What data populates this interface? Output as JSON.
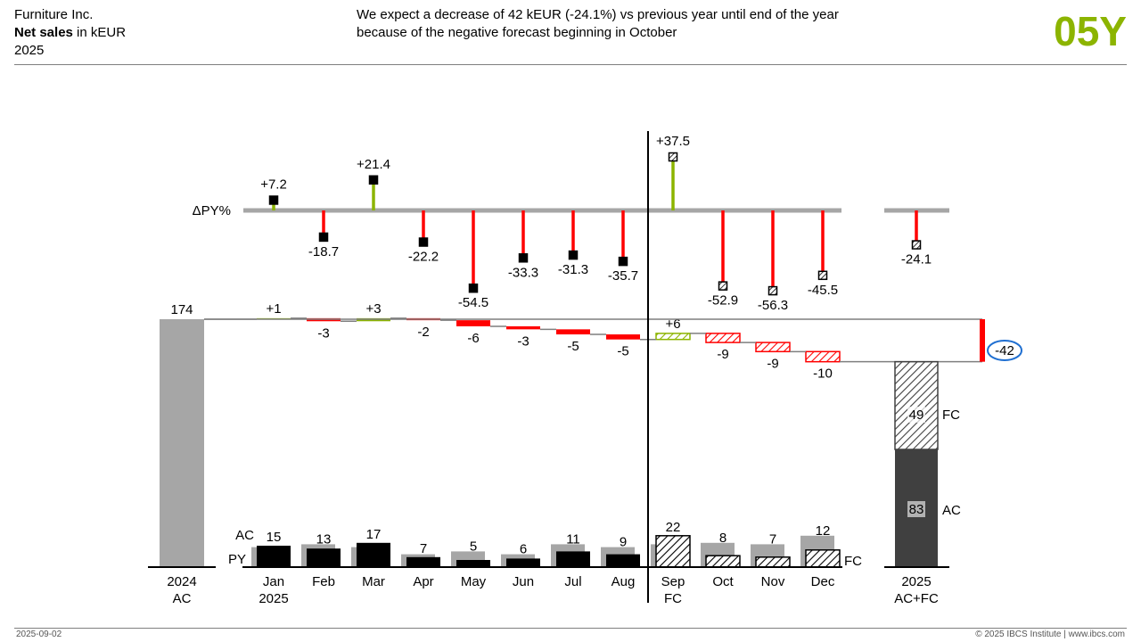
{
  "header": {
    "company": "Furniture Inc.",
    "measure_bold": "Net sales",
    "measure_rest": " in kEUR",
    "year": "2025",
    "message_line1": "We expect a decrease of 42 kEUR (-24.1%) vs previous year until end of the year",
    "message_line2": "because of the negative forecast beginning in October",
    "tag": "05Y"
  },
  "footer": {
    "date": "2025-09-02",
    "copyright": "© 2025 IBCS Institute | www.ibcs.com"
  },
  "colors": {
    "accent": "#8cb400",
    "positive": "#8cb400",
    "negative": "#ff0000",
    "ac": "#000000",
    "py": "#a6a6a6",
    "total_ac": "#404040",
    "highlight": "#1f6fd1"
  },
  "chart_data": {
    "type": "bar",
    "months": [
      {
        "label": "Jan",
        "sub": "2025",
        "ac": 15,
        "py": 14,
        "delta": 1,
        "delta_label": "+1",
        "pct": 7.2,
        "pct_label": "+7.2",
        "fc": false
      },
      {
        "label": "Feb",
        "sub": "",
        "ac": 13,
        "py": 16,
        "delta": -3,
        "delta_label": "-3",
        "pct": -18.7,
        "pct_label": "-18.7",
        "fc": false
      },
      {
        "label": "Mar",
        "sub": "",
        "ac": 17,
        "py": 14,
        "delta": 3,
        "delta_label": "+3",
        "pct": 21.4,
        "pct_label": "+21.4",
        "fc": false
      },
      {
        "label": "Apr",
        "sub": "",
        "ac": 7,
        "py": 9,
        "delta": -2,
        "delta_label": "-2",
        "pct": -22.2,
        "pct_label": "-22.2",
        "fc": false
      },
      {
        "label": "May",
        "sub": "",
        "ac": 5,
        "py": 11,
        "delta": -6,
        "delta_label": "-6",
        "pct": -54.5,
        "pct_label": "-54.5",
        "fc": false
      },
      {
        "label": "Jun",
        "sub": "",
        "ac": 6,
        "py": 9,
        "delta": -3,
        "delta_label": "-3",
        "pct": -33.3,
        "pct_label": "-33.3",
        "fc": false
      },
      {
        "label": "Jul",
        "sub": "",
        "ac": 11,
        "py": 16,
        "delta": -5,
        "delta_label": "-5",
        "pct": -31.3,
        "pct_label": "-31.3",
        "fc": false
      },
      {
        "label": "Aug",
        "sub": "",
        "ac": 9,
        "py": 14,
        "delta": -5,
        "delta_label": "-5",
        "pct": -35.7,
        "pct_label": "-35.7",
        "fc": false
      },
      {
        "label": "Sep",
        "sub": "FC",
        "ac": 22,
        "py": 16,
        "delta": 6,
        "delta_label": "+6",
        "pct": 37.5,
        "pct_label": "+37.5",
        "fc": true
      },
      {
        "label": "Oct",
        "sub": "",
        "ac": 8,
        "py": 17,
        "delta": -9,
        "delta_label": "-9",
        "pct": -52.9,
        "pct_label": "-52.9",
        "fc": true
      },
      {
        "label": "Nov",
        "sub": "",
        "ac": 7,
        "py": 16,
        "delta": -9,
        "delta_label": "-9",
        "pct": -56.3,
        "pct_label": "-56.3",
        "fc": true
      },
      {
        "label": "Dec",
        "sub": "",
        "ac": 12,
        "py": 22,
        "delta": -10,
        "delta_label": "-10",
        "pct": -45.5,
        "pct_label": "-45.5",
        "fc": true
      }
    ],
    "start": {
      "label": "2024",
      "sub": "AC",
      "value": 174,
      "value_label": "174"
    },
    "end": {
      "label": "2025",
      "sub": "AC+FC",
      "total": 132,
      "total_label": "132",
      "ac": 83,
      "ac_label": "83",
      "fc": 49,
      "fc_label": "49",
      "pct": -24.1,
      "pct_label": "-24.1",
      "delta_label": "-42"
    },
    "labels": {
      "delta_pct_row": "ΔPY%",
      "ac_row": "AC",
      "py_row": "PY",
      "fc_legend": "FC",
      "seg_fc": "FC",
      "seg_ac": "AC"
    }
  }
}
